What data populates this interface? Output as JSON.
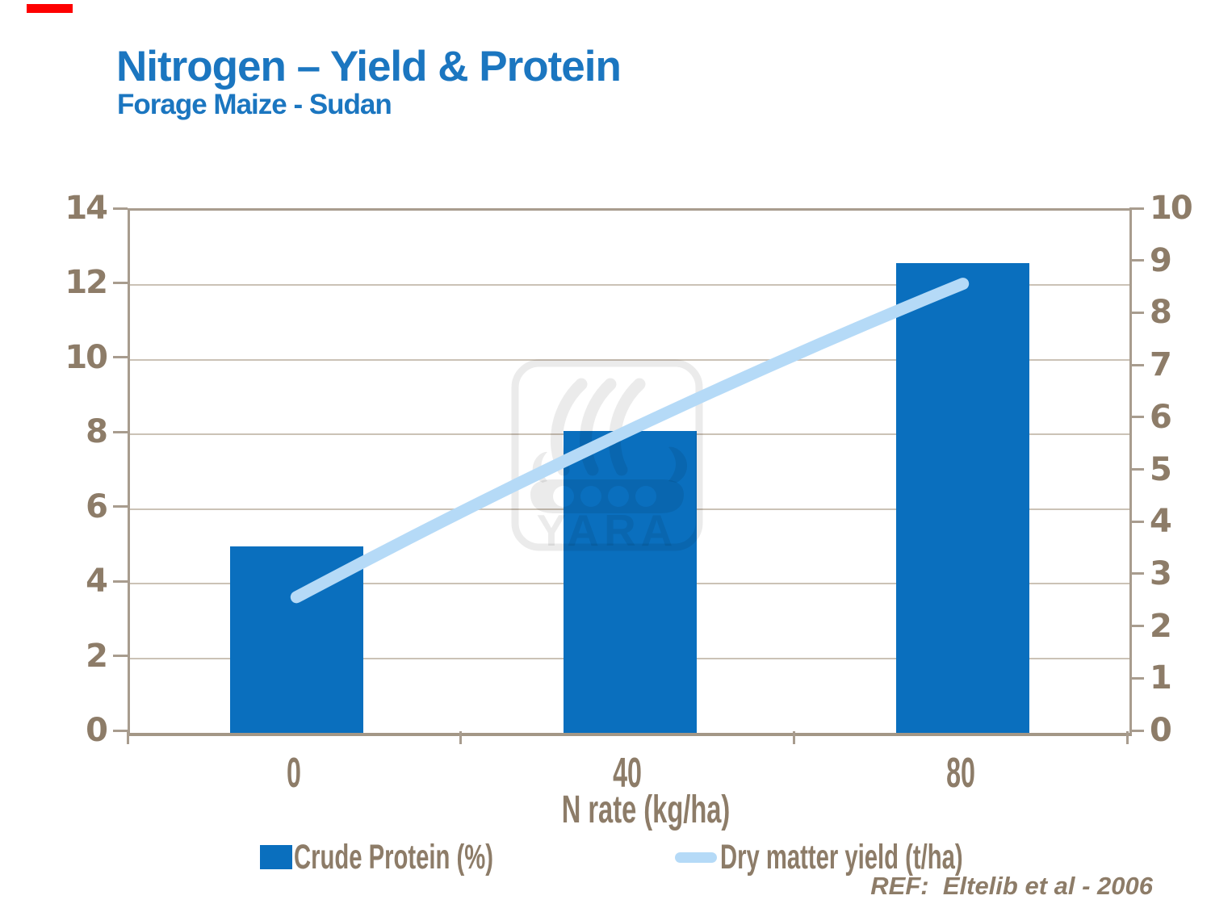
{
  "marker": {
    "color": "#fe0000"
  },
  "header": {
    "title": "Nitrogen – Yield & Protein",
    "subtitle": "Forage Maize - Sudan",
    "title_color": "#1b76c0"
  },
  "chart_data": {
    "type": "bar",
    "subtype": "combo bar + smoothed line, dual axis",
    "categories": [
      "0",
      "40",
      "80"
    ],
    "xlabel": "N rate (kg/ha)",
    "series": [
      {
        "name": "Crude Protein (%)",
        "type": "bar",
        "axis": "left",
        "values": [
          5.0,
          8.1,
          12.6
        ],
        "color": "#0a6fbe"
      },
      {
        "name": "Dry matter yield (t/ha)",
        "type": "line",
        "axis": "right",
        "values": [
          2.6,
          5.8,
          8.6
        ],
        "color": "#b5daf7"
      }
    ],
    "left_axis": {
      "min": 0,
      "max": 14,
      "step": 2,
      "ticks": [
        14,
        12,
        10,
        8,
        6,
        4,
        2,
        0
      ]
    },
    "right_axis": {
      "min": 0,
      "max": 10,
      "step": 1,
      "ticks": [
        10,
        9,
        8,
        7,
        6,
        5,
        4,
        3,
        2,
        1,
        0
      ]
    },
    "grid": "horizontal gridlines at left-axis steps",
    "legend_position": "bottom",
    "text_color": "#8d7c68",
    "axis_color": "#a89c8e",
    "grid_color": "#cbc2b6"
  },
  "watermark": {
    "text": "YARA"
  },
  "reference": {
    "text": "REF:  Eltelib et al - 2006"
  }
}
